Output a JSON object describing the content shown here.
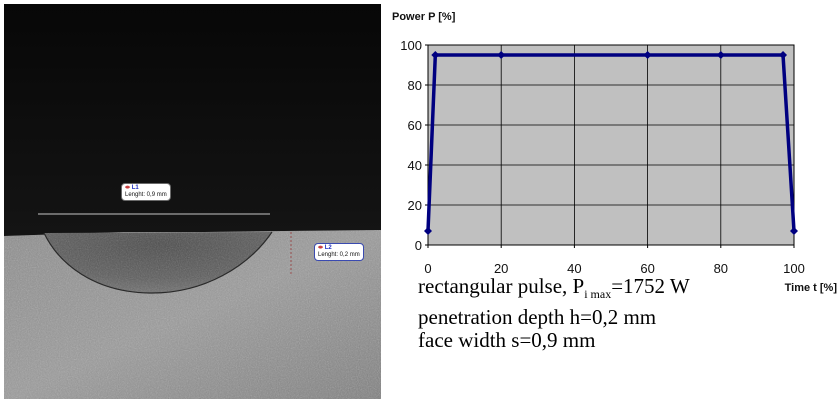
{
  "micrograph": {
    "label_l1": {
      "tag": "L1",
      "text": "Lenght: 0,9 mm"
    },
    "label_l2": {
      "tag": "L2",
      "text": "Lenght: 0,2 mm"
    }
  },
  "chart_data": {
    "type": "line",
    "title": "",
    "ylabel": "Power P [%]",
    "xlabel": "Time t [%]",
    "xlim": [
      0,
      100
    ],
    "ylim": [
      0,
      100
    ],
    "x_ticks": [
      0,
      20,
      40,
      60,
      80,
      100
    ],
    "y_ticks": [
      0,
      20,
      40,
      60,
      80,
      100
    ],
    "grid": true,
    "background": "#c0c0c0",
    "line_color": "#000080",
    "series": [
      {
        "x": [
          0,
          2,
          20,
          60,
          80,
          97,
          100
        ],
        "y": [
          7,
          95,
          95,
          95,
          95,
          95,
          7
        ]
      }
    ]
  },
  "caption": {
    "line1_prefix": "rectangular pulse, P",
    "line1_sub": "i max",
    "line1_suffix": "=1752 W",
    "line2": "penetration depth h=0,2 mm",
    "line3": "face width s=0,9 mm"
  }
}
